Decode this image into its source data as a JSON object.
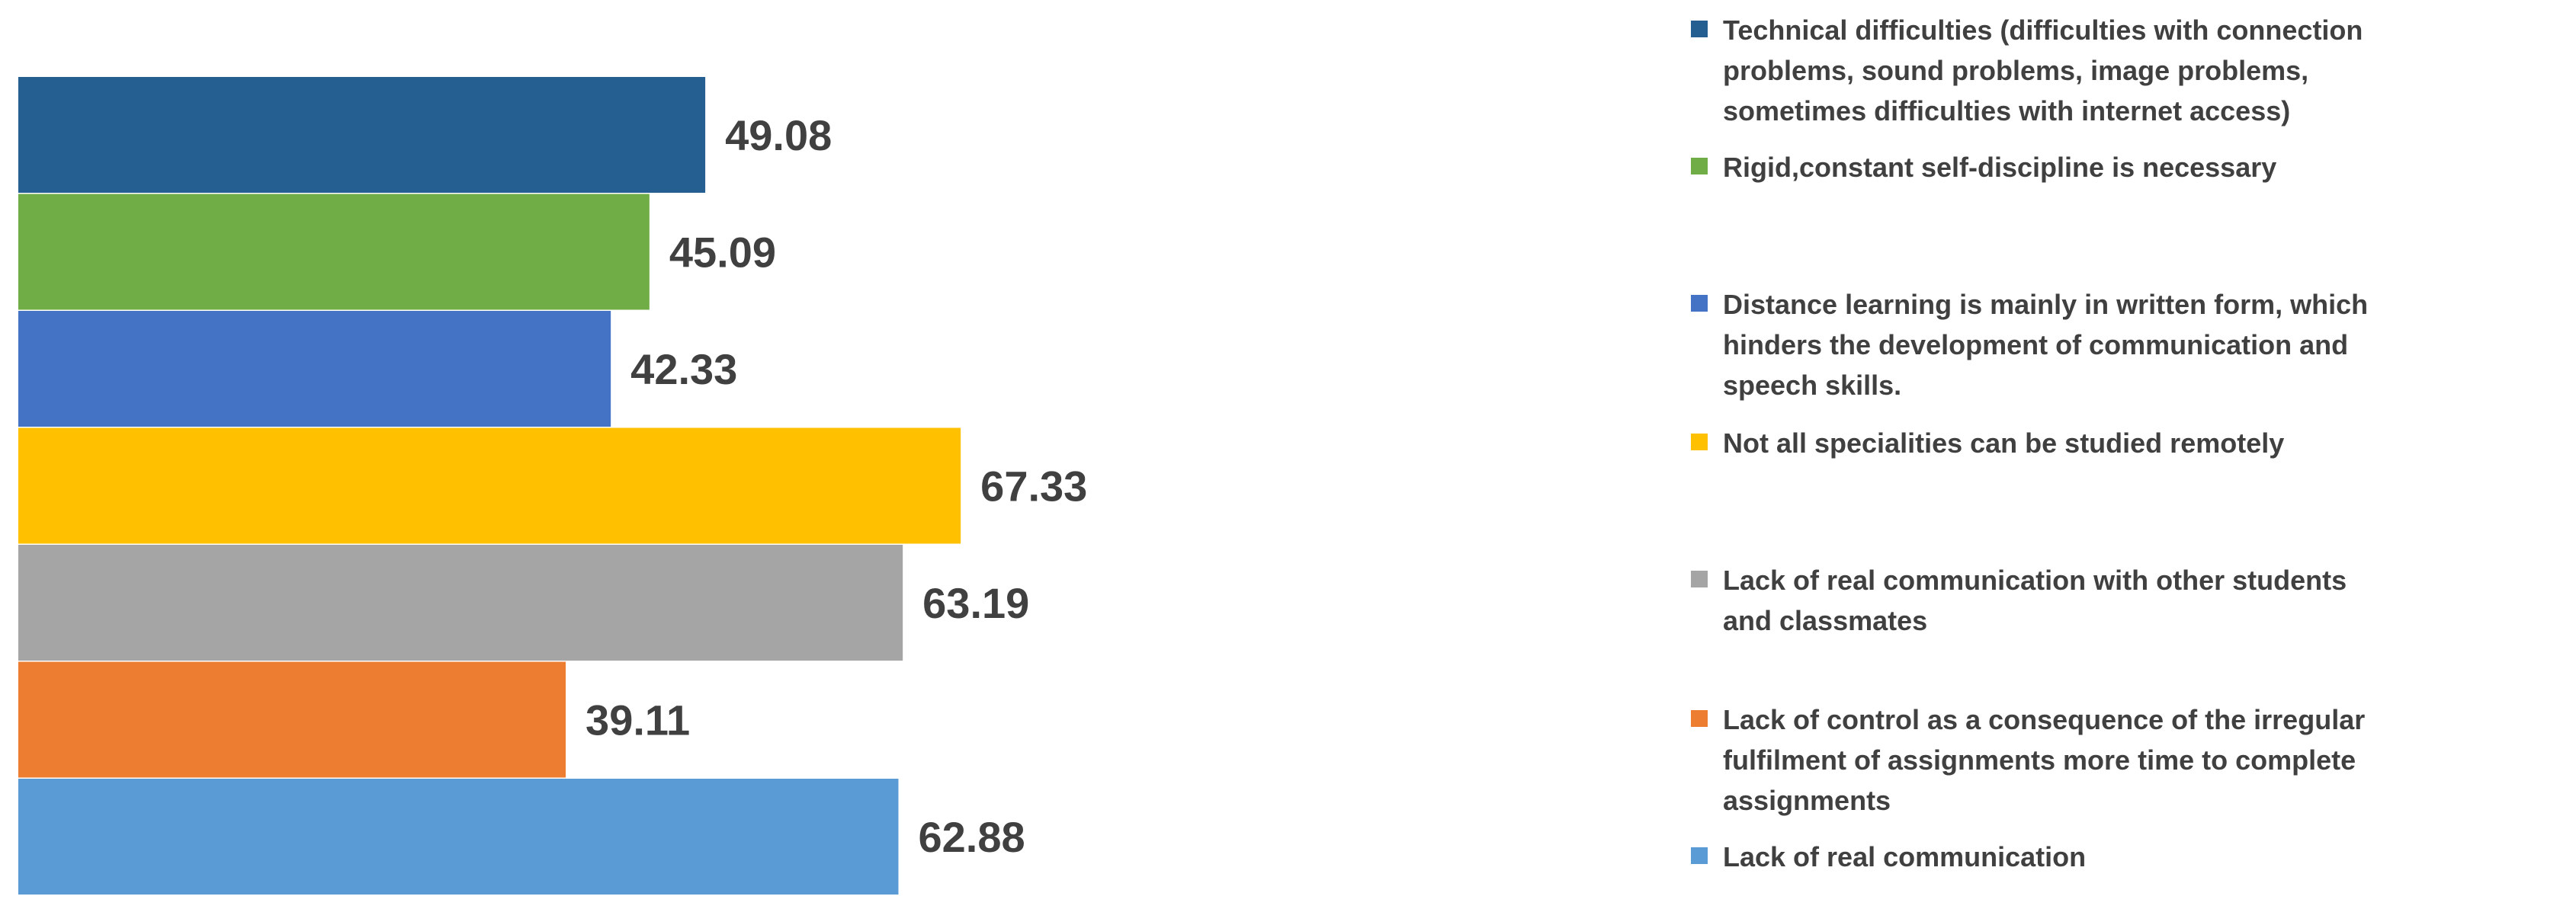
{
  "chart_data": {
    "type": "bar",
    "orientation": "horizontal",
    "title": "",
    "xlabel": "",
    "ylabel": "",
    "xlim": [
      0,
      100
    ],
    "grid": false,
    "axes_visible": false,
    "legend_position": "right",
    "data_labels": true,
    "bars": [
      {
        "name": "Technical difficulties (difficulties with connection problems, sound problems, image problems, sometimes difficulties with internet access)",
        "legend_lines": [
          "Technical difficulties (difficulties with connection",
          "problems, sound problems, image problems,",
          "sometimes difficulties with internet access)"
        ],
        "value": 49.08,
        "label": "49.08",
        "color": "#255E91"
      },
      {
        "name": "Rigid,constant self-discipline is necessary",
        "legend_lines": [
          "Rigid,constant self-discipline is necessary"
        ],
        "value": 45.09,
        "label": "45.09",
        "color": "#70AD47"
      },
      {
        "name": "Distance learning is mainly in written form, which hinders the development of communication and speech skills.",
        "legend_lines": [
          "Distance learning is mainly in written form, which",
          "hinders the development of communication and",
          "speech skills."
        ],
        "value": 42.33,
        "label": "42.33",
        "color": "#4472C4"
      },
      {
        "name": "Not all specialities can be studied remotely",
        "legend_lines": [
          "Not all specialities can be studied remotely"
        ],
        "value": 67.33,
        "label": "67.33",
        "color": "#FFC000"
      },
      {
        "name": "Lack of real communication with other students and classmates",
        "legend_lines": [
          "Lack of real communication with other students",
          "and classmates"
        ],
        "value": 63.19,
        "label": "63.19",
        "color": "#A5A5A5"
      },
      {
        "name": "Lack of control as a consequence of  the irregular fulfilment of assignments more time to complete assignments",
        "legend_lines": [
          "Lack of control as a consequence of  the irregular",
          "fulfilment of assignments more time to complete",
          "assignments"
        ],
        "value": 39.11,
        "label": "39.11",
        "color": "#ED7D31"
      },
      {
        "name": "Lack of real communication",
        "legend_lines": [
          "Lack of real communication"
        ],
        "value": 62.88,
        "label": "62.88",
        "color": "#5B9BD5"
      }
    ]
  }
}
